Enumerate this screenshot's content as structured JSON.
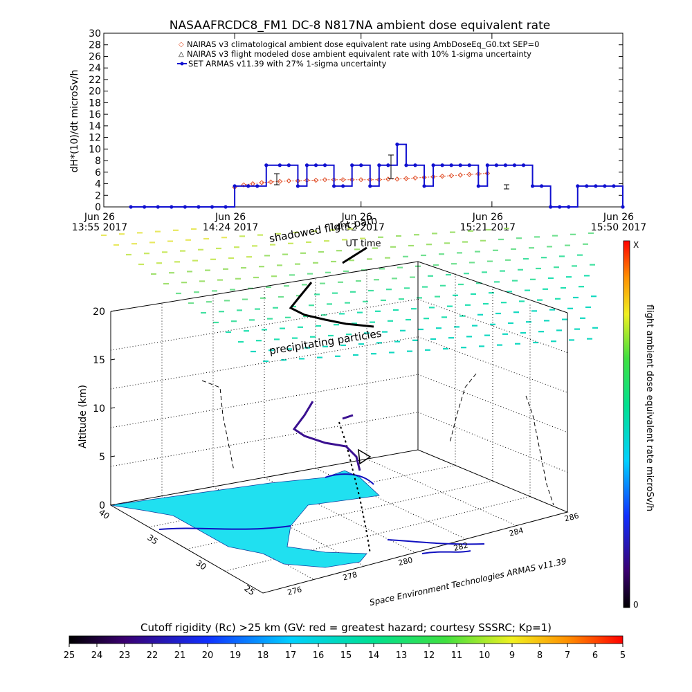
{
  "chart_data": [
    {
      "type": "line",
      "title": "NASAAFRCDC8_FM1 DC-8   N817NA ambient dose equivalent rate",
      "ylabel": "dH*(10)/dt microSv/h",
      "xlabel": "UT time",
      "ylim": [
        0,
        30
      ],
      "y_ticks": [
        "0",
        "2",
        "4",
        "6",
        "8",
        "10",
        "12",
        "14",
        "16",
        "18",
        "20",
        "22",
        "24",
        "26",
        "28",
        "30"
      ],
      "xlim": [
        "13:55",
        "15:50"
      ],
      "x_ticks": [
        {
          "t": "13:55",
          "date": "Jun 26",
          "label": "13:55 2017"
        },
        {
          "t": "14:24",
          "date": "Jun 26",
          "label": "14:24 2017"
        },
        {
          "t": "14:52",
          "date": "Jun 26",
          "label": "14:52 2017"
        },
        {
          "t": "15:21",
          "date": "Jun 26",
          "label": "15:21 2017"
        },
        {
          "t": "15:50",
          "date": "Jun 26",
          "label": "15:50 2017"
        }
      ],
      "legend": [
        "NAIRAS v3 climatological ambient dose equivalent rate using AmbDoseEq_G0.txt SEP=0",
        "NAIRAS v3 flight modeled dose ambient equivalent rate with 10% 1-sigma uncertainty",
        "SET ARMAS v11.39 with 27% 1-sigma uncertainty"
      ],
      "legend_position": "top",
      "colors": {
        "nairas_clim": "#e0502a",
        "armas": "#1010d0",
        "modeled": "#000000"
      },
      "series": [
        {
          "name": "NAIRAS v3 climatological ambient dose equivalent rate using AmbDoseEq_G0.txt SEP=0",
          "x": [
            "14:24",
            "14:26",
            "14:28",
            "14:30",
            "14:32",
            "14:34",
            "14:36",
            "14:38",
            "14:40",
            "14:42",
            "14:44",
            "14:46",
            "14:48",
            "14:50",
            "14:52",
            "14:54",
            "14:56",
            "14:58",
            "15:00",
            "15:02",
            "15:04",
            "15:06",
            "15:08",
            "15:10",
            "15:12",
            "15:14",
            "15:16",
            "15:18",
            "15:20"
          ],
          "values": [
            3.4,
            3.8,
            4.0,
            4.2,
            4.3,
            4.4,
            4.5,
            4.5,
            4.6,
            4.6,
            4.7,
            4.7,
            4.7,
            4.7,
            4.7,
            4.7,
            4.7,
            4.8,
            4.8,
            4.9,
            5.0,
            5.1,
            5.2,
            5.3,
            5.4,
            5.5,
            5.6,
            5.7,
            5.8
          ]
        },
        {
          "name": "SET ARMAS v11.39 with 27% 1-sigma uncertainty",
          "x": [
            "14:01",
            "14:04",
            "14:07",
            "14:10",
            "14:13",
            "14:16",
            "14:19",
            "14:22",
            "14:24",
            "14:27",
            "14:29",
            "14:31",
            "14:34",
            "14:36",
            "14:38",
            "14:40",
            "14:42",
            "14:44",
            "14:46",
            "14:48",
            "14:50",
            "14:52",
            "14:54",
            "14:56",
            "14:58",
            "15:00",
            "15:02",
            "15:04",
            "15:06",
            "15:08",
            "15:10",
            "15:12",
            "15:14",
            "15:16",
            "15:18",
            "15:20",
            "15:22",
            "15:24",
            "15:26",
            "15:28",
            "15:30",
            "15:32",
            "15:34",
            "15:36",
            "15:38",
            "15:40",
            "15:42",
            "15:44",
            "15:46",
            "15:48",
            "15:50"
          ],
          "values": [
            0,
            0,
            0,
            0,
            0,
            0,
            0,
            0,
            3.6,
            3.6,
            3.6,
            7.2,
            7.2,
            7.2,
            3.6,
            7.2,
            7.2,
            7.2,
            3.6,
            3.6,
            7.2,
            7.2,
            3.6,
            7.2,
            7.2,
            10.8,
            7.2,
            7.2,
            3.6,
            7.2,
            7.2,
            7.2,
            7.2,
            7.2,
            3.6,
            7.2,
            7.2,
            7.2,
            7.2,
            7.2,
            3.6,
            3.6,
            0,
            0,
            0,
            3.6,
            3.6,
            3.6,
            3.6,
            3.6,
            0
          ]
        }
      ]
    },
    {
      "type": "scatter",
      "zlabel": "Altitude (km)",
      "z_ticks": [
        "0",
        "5",
        "10",
        "15",
        "20"
      ],
      "lat_ticks": [
        "40",
        "35",
        "30",
        "25"
      ],
      "lon_ticks": [
        "276",
        "278",
        "280",
        "282",
        "284",
        "286"
      ],
      "annotations": [
        "shadowed flight path",
        "precipitating particles"
      ],
      "credit": "Space Environment Technologies ARMAS v11.39",
      "colorbar": {
        "label": "flight ambient dose equivalent rate microSv/h",
        "min_label": "0",
        "max_label": "X"
      }
    },
    {
      "type": "heatmap",
      "title": "Cutoff rigidity (Rc) >25 km (GV: red = greatest hazard; courtesy SSSRC; Kp=1)",
      "ticks": [
        "25",
        "24",
        "23",
        "22",
        "21",
        "20",
        "19",
        "18",
        "17",
        "16",
        "15",
        "14",
        "13",
        "12",
        "11",
        "10",
        "9",
        "8",
        "7",
        "6",
        "5"
      ]
    }
  ]
}
